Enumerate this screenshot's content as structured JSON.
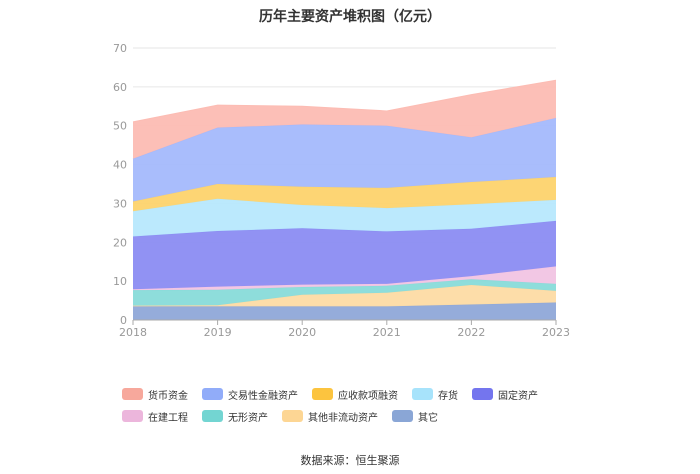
{
  "chart_data": {
    "type": "area",
    "stacked": true,
    "title": "历年主要资产堆积图（亿元）",
    "x": [
      "2018",
      "2019",
      "2020",
      "2021",
      "2022",
      "2023"
    ],
    "ylim": [
      0,
      70
    ],
    "yticks": [
      0,
      10,
      20,
      30,
      40,
      50,
      60,
      70
    ],
    "grid": true,
    "legend_position": "bottom",
    "series": [
      {
        "name": "其它",
        "color": "#8fa8d8",
        "values": [
          3.5,
          3.5,
          3.5,
          3.5,
          4.0,
          4.5
        ]
      },
      {
        "name": "其他非流动资产",
        "color": "#fddba4",
        "values": [
          0.2,
          0.3,
          3.0,
          3.5,
          5.0,
          3.0
        ]
      },
      {
        "name": "无形资产",
        "color": "#88dbd9",
        "values": [
          4.0,
          4.0,
          2.0,
          1.8,
          1.5,
          1.8
        ]
      },
      {
        "name": "在建工程",
        "color": "#f1c4e3",
        "values": [
          0.2,
          0.8,
          0.6,
          0.5,
          0.8,
          4.5
        ]
      },
      {
        "name": "固定资产",
        "color": "#8b8cf2",
        "values": [
          13.6,
          14.3,
          14.5,
          13.5,
          12.2,
          11.7
        ]
      },
      {
        "name": "存货",
        "color": "#b7e8fd",
        "values": [
          6.5,
          8.3,
          6.0,
          6.0,
          6.3,
          5.4
        ]
      },
      {
        "name": "应收款项融资",
        "color": "#fdd36d",
        "values": [
          2.5,
          3.8,
          4.7,
          5.2,
          5.7,
          5.9
        ]
      },
      {
        "name": "交易性金融资产",
        "color": "#a4b9fc",
        "values": [
          11.0,
          14.5,
          16.0,
          16.0,
          11.5,
          15.2
        ]
      },
      {
        "name": "货币资金",
        "color": "#fcbcb3",
        "values": [
          9.5,
          5.8,
          4.7,
          3.8,
          11.0,
          9.7
        ]
      }
    ]
  },
  "legend": [
    {
      "label": "货币资金",
      "color": "#f7a89c"
    },
    {
      "label": "交易性金融资产",
      "color": "#91acf9"
    },
    {
      "label": "应收款项融资",
      "color": "#fcc43f"
    },
    {
      "label": "存货",
      "color": "#a7e3fb"
    },
    {
      "label": "固定资产",
      "color": "#7475ee"
    },
    {
      "label": "在建工程",
      "color": "#ecb6dc"
    },
    {
      "label": "无形资产",
      "color": "#73d5d2"
    },
    {
      "label": "其他非流动资产",
      "color": "#fdd694"
    },
    {
      "label": "其它",
      "color": "#8aa6d6"
    }
  ],
  "source": "数据来源：恒生聚源"
}
